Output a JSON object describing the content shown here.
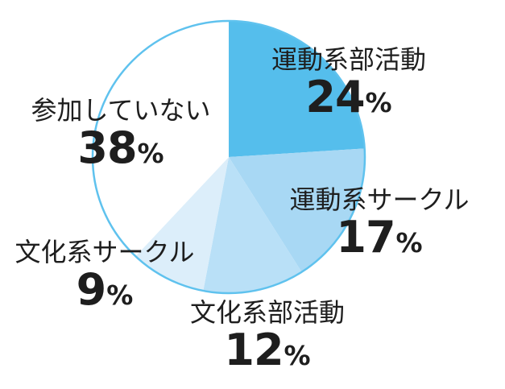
{
  "chart_data": {
    "type": "pie",
    "title": "",
    "unit": "%",
    "direction": "clockwise",
    "start_angle_deg": 0,
    "background": "#FFFFFF",
    "outline_color": "#5FC2EE",
    "text_color": "#1E1E1E",
    "segments": [
      {
        "label": "運動系部活動",
        "value": 24,
        "color": "#55BEEC"
      },
      {
        "label": "運動系サークル",
        "value": 17,
        "color": "#A8D8F4"
      },
      {
        "label": "文化系部活動",
        "value": 12,
        "color": "#B9E0F7"
      },
      {
        "label": "文化系サークル",
        "value": 9,
        "color": "#DCEEFA"
      },
      {
        "label": "参加していない",
        "value": 38,
        "color": "#FFFFFF"
      }
    ]
  }
}
